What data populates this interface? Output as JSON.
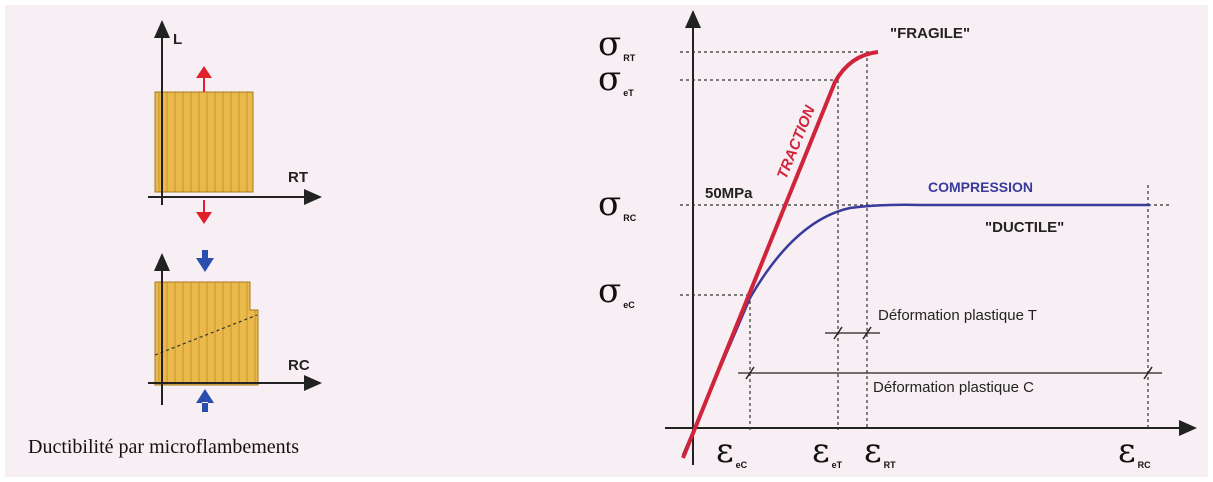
{
  "left_panel": {
    "axis_label": "L",
    "top_label": "RT",
    "bottom_label": "RC",
    "caption": "Ductibilité par microflambements"
  },
  "right_panel": {
    "stress_labels": [
      {
        "symbol": "σ",
        "sub": "RT"
      },
      {
        "symbol": "σ",
        "sub": "eT"
      },
      {
        "symbol": "σ",
        "sub": "RC"
      },
      {
        "symbol": "σ",
        "sub": "eC"
      }
    ],
    "strain_labels": [
      {
        "symbol": "ε",
        "sub": "eC"
      },
      {
        "symbol": "ε",
        "sub": "eT"
      },
      {
        "symbol": "ε",
        "sub": "RT"
      },
      {
        "symbol": "ε",
        "sub": "RC"
      }
    ],
    "fragile": "\"FRAGILE\"",
    "traction": "TRACTION",
    "stress_value": "50MPa",
    "compression": "COMPRESSION",
    "ductile": "\"DUCTILE\"",
    "plastic_t": "Déformation plastique T",
    "plastic_c": "Déformation plastique C"
  }
}
